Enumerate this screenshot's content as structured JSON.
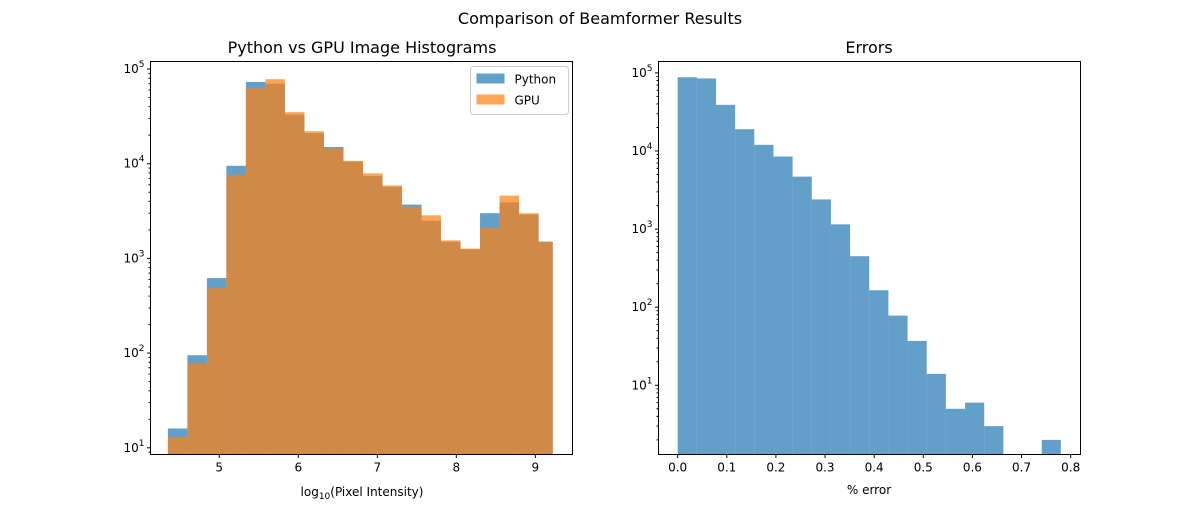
{
  "figure": {
    "suptitle": "Comparison of Beamformer Results"
  },
  "chart_data": [
    {
      "type": "bar",
      "subtype": "histogram",
      "title": "Python vs GPU Image Histograms",
      "xlabel_prefix": "log",
      "xlabel_subscript": "10",
      "xlabel_suffix": "(Pixel Intensity)",
      "ylabel": "",
      "yscale": "log",
      "xlim": [
        4.13,
        9.47
      ],
      "ylim": [
        8.5,
        120000
      ],
      "xticks": [
        5,
        6,
        7,
        8,
        9
      ],
      "xtick_labels": [
        "5",
        "6",
        "7",
        "8",
        "9"
      ],
      "yticks": [
        10,
        100,
        1000,
        10000,
        100000
      ],
      "ytick_labels": [
        {
          "base": "10",
          "exp": "1"
        },
        {
          "base": "10",
          "exp": "2"
        },
        {
          "base": "10",
          "exp": "3"
        },
        {
          "base": "10",
          "exp": "4"
        },
        {
          "base": "10",
          "exp": "5"
        }
      ],
      "legend_position": "top-right",
      "series": [
        {
          "name": "Python",
          "color": "#1f77b4",
          "alpha": 0.7,
          "bin_edges": [
            4.35,
            4.597,
            4.844,
            5.09,
            5.337,
            5.584,
            5.831,
            6.078,
            6.325,
            6.572,
            6.819,
            7.066,
            7.313,
            7.56,
            7.806,
            8.053,
            8.3,
            8.547,
            8.794,
            9.041,
            9.22
          ],
          "values": [
            16,
            95,
            620,
            9500,
            73000,
            70000,
            33000,
            21000,
            15000,
            10500,
            7400,
            5700,
            3700,
            2500,
            1500,
            1250,
            3000,
            3900,
            2900,
            1500
          ]
        },
        {
          "name": "GPU",
          "color": "#ff7f0e",
          "alpha": 0.7,
          "bin_edges": [
            4.35,
            4.597,
            4.844,
            5.09,
            5.337,
            5.584,
            5.831,
            6.078,
            6.325,
            6.572,
            6.819,
            7.066,
            7.313,
            7.56,
            7.806,
            8.053,
            8.3,
            8.547,
            8.794,
            9.041,
            9.22
          ],
          "values": [
            13,
            78,
            490,
            7600,
            63000,
            78000,
            35000,
            22000,
            14500,
            10700,
            7900,
            5900,
            3500,
            2850,
            1550,
            1270,
            2100,
            4600,
            3000,
            1500
          ]
        }
      ]
    },
    {
      "type": "bar",
      "subtype": "histogram",
      "title": "Errors",
      "xlabel": "% error",
      "ylabel": "",
      "yscale": "log",
      "xlim": [
        -0.039,
        0.82
      ],
      "ylim": [
        1.3,
        140000
      ],
      "xticks": [
        0.0,
        0.1,
        0.2,
        0.3,
        0.4,
        0.5,
        0.6,
        0.7,
        0.8
      ],
      "xtick_labels": [
        "0.0",
        "0.1",
        "0.2",
        "0.3",
        "0.4",
        "0.5",
        "0.6",
        "0.7",
        "0.8"
      ],
      "yticks": [
        10,
        100,
        1000,
        10000,
        100000
      ],
      "ytick_labels": [
        {
          "base": "10",
          "exp": "1"
        },
        {
          "base": "10",
          "exp": "2"
        },
        {
          "base": "10",
          "exp": "3"
        },
        {
          "base": "10",
          "exp": "4"
        },
        {
          "base": "10",
          "exp": "5"
        }
      ],
      "series": [
        {
          "color": "#1f77b4",
          "alpha": 0.7,
          "bin_edges": [
            0.0,
            0.039,
            0.078,
            0.117,
            0.156,
            0.195,
            0.234,
            0.273,
            0.312,
            0.351,
            0.39,
            0.429,
            0.468,
            0.507,
            0.546,
            0.585,
            0.624,
            0.663,
            0.702,
            0.741,
            0.78
          ],
          "values": [
            88000,
            85000,
            39000,
            19000,
            12000,
            8500,
            4700,
            2400,
            1150,
            450,
            165,
            78,
            37,
            14,
            5,
            6,
            3,
            0,
            0,
            2
          ]
        }
      ]
    }
  ]
}
